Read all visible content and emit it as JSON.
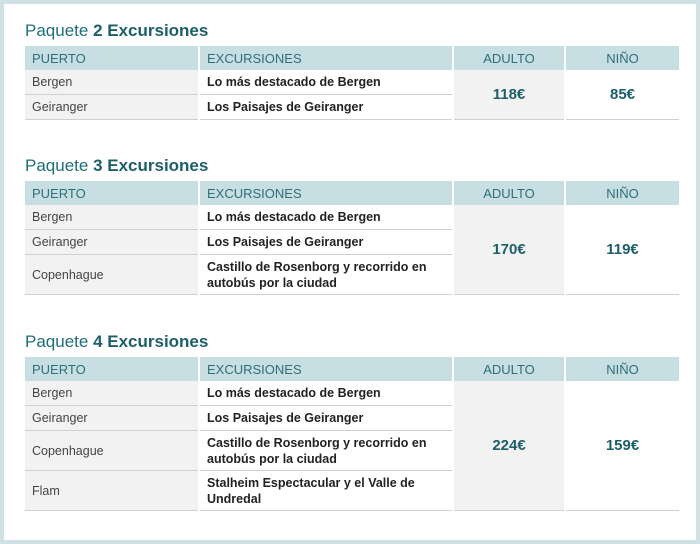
{
  "headers": {
    "port": "PUERTO",
    "excursions": "EXCURSIONES",
    "adult": "ADULTO",
    "child": "NIÑO"
  },
  "packages": [
    {
      "title_prefix": "Paquete ",
      "title_bold": "2 Excursiones",
      "rows": [
        {
          "port": "Bergen",
          "excursion": "Lo más destacado de Bergen"
        },
        {
          "port": "Geiranger",
          "excursion": "Los Paisajes de Geiranger"
        }
      ],
      "adult_price": "118€",
      "child_price": "85€"
    },
    {
      "title_prefix": "Paquete ",
      "title_bold": "3 Excursiones",
      "rows": [
        {
          "port": "Bergen",
          "excursion": "Lo más destacado de Bergen"
        },
        {
          "port": "Geiranger",
          "excursion": "Los Paisajes de Geiranger"
        },
        {
          "port": "Copenhague",
          "excursion": "Castillo de Rosenborg y recorrido en autobús por la ciudad"
        }
      ],
      "adult_price": "170€",
      "child_price": "119€"
    },
    {
      "title_prefix": "Paquete ",
      "title_bold": "4 Excursiones",
      "rows": [
        {
          "port": "Bergen",
          "excursion": "Lo más destacado de Bergen"
        },
        {
          "port": "Geiranger",
          "excursion": "Los Paisajes de Geiranger"
        },
        {
          "port": "Copenhague",
          "excursion": "Castillo de Rosenborg y recorrido en autobús por la ciudad"
        },
        {
          "port": "Flam",
          "excursion": "Stalheim Espectacular  y el Valle de Undredal"
        }
      ],
      "adult_price": "224€",
      "child_price": "159€"
    }
  ]
}
